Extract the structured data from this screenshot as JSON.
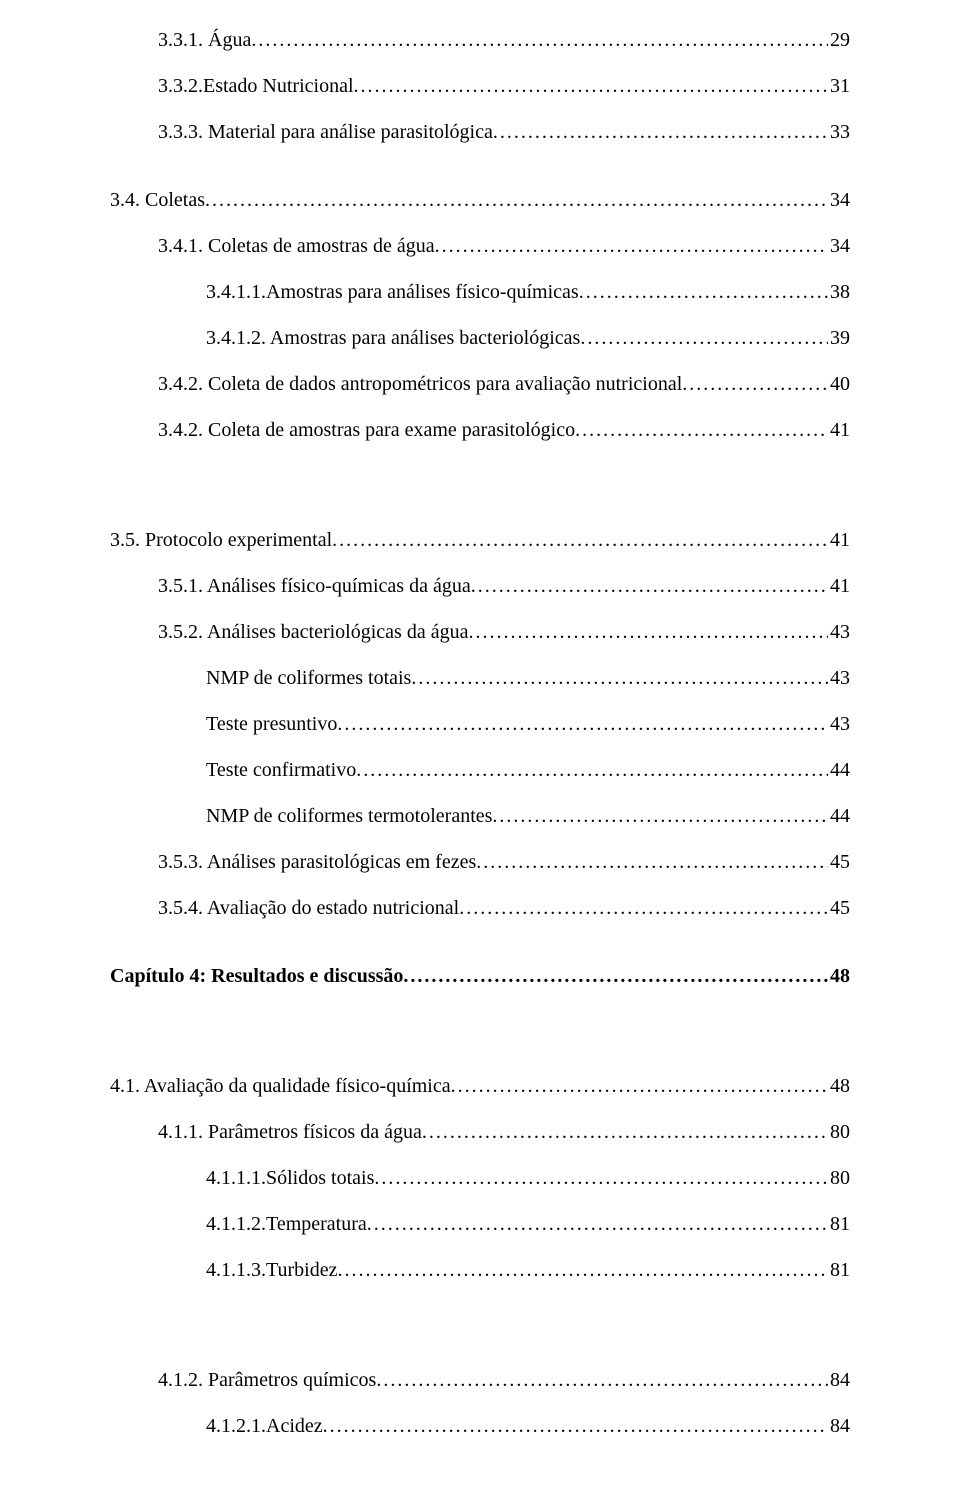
{
  "typography": {
    "font_family": "Times New Roman",
    "base_fontsize_pt": 15,
    "text_color": "#000000",
    "background_color": "#ffffff",
    "leader_char": "."
  },
  "entries": [
    {
      "indent": 1,
      "label": "3.3.1. Água",
      "page": "29",
      "bold": false
    },
    {
      "indent": 1,
      "label": "3.3.2.Estado Nutricional",
      "page": "31",
      "bold": false
    },
    {
      "indent": 1,
      "label": "3.3.3. Material para análise parasitológica",
      "page": "33",
      "bold": false
    },
    {
      "blank": 1
    },
    {
      "indent": 0,
      "label": "3.4. Coletas",
      "page": "34",
      "bold": false
    },
    {
      "indent": 1,
      "label": "3.4.1. Coletas de amostras de água",
      "page": "34",
      "bold": false
    },
    {
      "indent": 2,
      "label": "3.4.1.1.Amostras para análises físico-químicas",
      "page": "38",
      "bold": false
    },
    {
      "indent": 2,
      "label": "3.4.1.2. Amostras para análises bacteriológicas",
      "page": "39",
      "bold": false
    },
    {
      "indent": 1,
      "label": "3.4.2. Coleta de dados antropométricos para avaliação nutricional",
      "page": "40",
      "bold": false
    },
    {
      "indent": 1,
      "label": "3.4.2. Coleta de amostras para exame parasitológico",
      "page": "41",
      "bold": false
    },
    {
      "blank": 2
    },
    {
      "indent": 0,
      "label": "3.5. Protocolo experimental",
      "page": "41",
      "bold": false
    },
    {
      "indent": 1,
      "label": "3.5.1. Análises físico-químicas da água",
      "page": "41",
      "bold": false
    },
    {
      "indent": 1,
      "label": "3.5.2. Análises bacteriológicas da água",
      "page": "43",
      "bold": false
    },
    {
      "indent": 2,
      "label": "NMP de coliformes totais",
      "page": "43",
      "bold": false
    },
    {
      "indent": 2,
      "label": "Teste presuntivo",
      "page": "43",
      "bold": false
    },
    {
      "indent": 2,
      "label": "Teste confirmativo",
      "page": "44",
      "bold": false
    },
    {
      "indent": 2,
      "label": "NMP de coliformes termotolerantes",
      "page": "44",
      "bold": false
    },
    {
      "indent": 1,
      "label": "3.5.3. Análises  parasitológicas em fezes ",
      "page": "45",
      "bold": false
    },
    {
      "indent": 1,
      "label": "3.5.4. Avaliação do estado nutricional",
      "page": " 45",
      "bold": false
    },
    {
      "blank": 1
    },
    {
      "indent": 0,
      "label": "Capítulo 4: Resultados e discussão",
      "page": "48",
      "bold": true
    },
    {
      "blank": 2
    },
    {
      "indent": 0,
      "label": "4.1. Avaliação da qualidade físico-química",
      "page": "48",
      "bold": false
    },
    {
      "indent": 1,
      "label": "4.1.1. Parâmetros físicos da água",
      "page": "80",
      "bold": false
    },
    {
      "indent": 2,
      "label": "4.1.1.1.Sólidos totais",
      "page": "80",
      "bold": false
    },
    {
      "indent": 2,
      "label": "4.1.1.2.Temperatura ",
      "page": "81",
      "bold": false
    },
    {
      "indent": 2,
      "label": "4.1.1.3.Turbidez",
      "page": " 81",
      "bold": false
    },
    {
      "blank": 2
    },
    {
      "indent": 1,
      "label": "4.1.2. Parâmetros químicos",
      "page": "84",
      "bold": false
    },
    {
      "indent": 2,
      "label": "4.1.2.1.Acidez",
      "page": "84",
      "bold": false
    }
  ]
}
